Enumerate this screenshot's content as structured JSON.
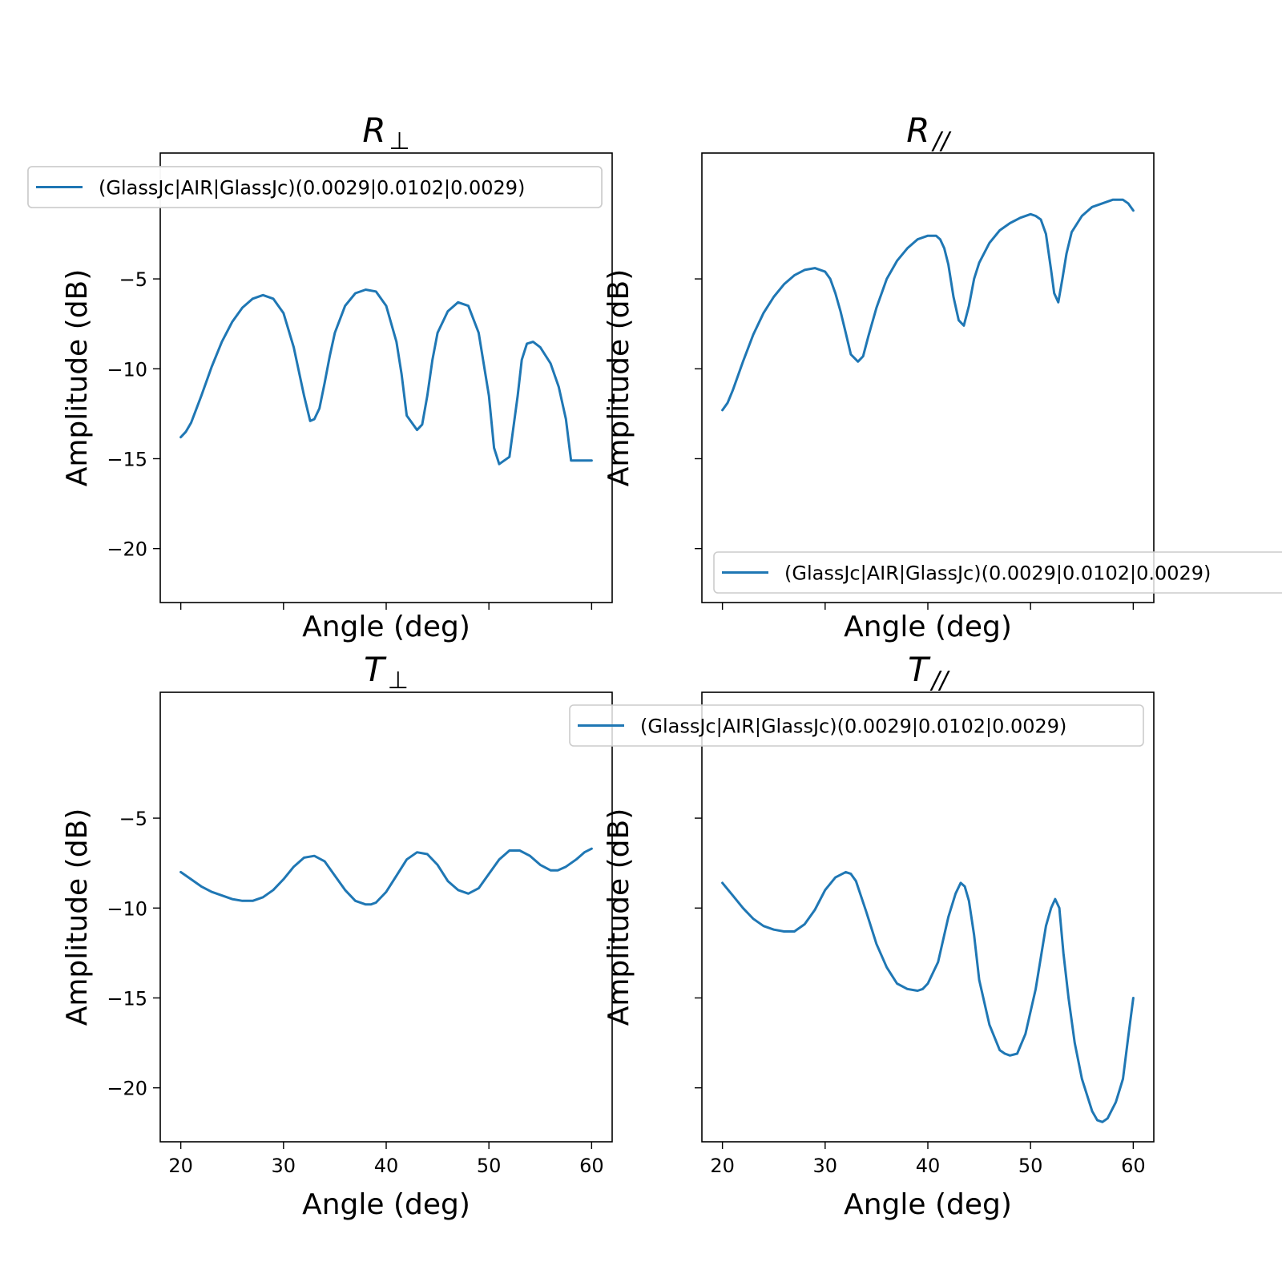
{
  "figure": {
    "background": "#ffffff",
    "line_color": "#1f77b4"
  },
  "chart_data": [
    {
      "type": "line",
      "title": "R",
      "title_subscript": "⊥",
      "xlabel": "Angle (deg)",
      "ylabel": "Amplitude (dB)",
      "xlim": [
        18,
        62
      ],
      "ylim": [
        -23,
        2
      ],
      "xticks": [
        20,
        30,
        40,
        50,
        60
      ],
      "yticks": [
        -20,
        -15,
        -10,
        -5
      ],
      "show_xtick_labels": false,
      "show_ytick_labels": true,
      "grid": false,
      "legend_position": "top-left",
      "series": [
        {
          "name": "(GlassJc|AIR|GlassJc)(0.0029|0.0102|0.0029)",
          "color": "#1f77b4",
          "x": [
            20,
            20.5,
            21,
            22,
            23,
            24,
            25,
            26,
            27,
            28,
            29,
            30,
            31,
            32,
            32.6,
            33,
            33.5,
            34,
            34.5,
            35,
            36,
            37,
            38,
            39,
            40,
            41,
            41.5,
            42,
            43,
            43.5,
            44,
            44.5,
            45,
            46,
            47,
            48,
            49,
            50,
            50.5,
            51,
            52,
            52.8,
            53.2,
            53.7,
            54.3,
            55,
            56,
            56.8,
            57.5,
            58,
            58.5,
            59,
            59.5,
            60
          ],
          "y": [
            -13.8,
            -13.5,
            -13.0,
            -11.5,
            -9.9,
            -8.5,
            -7.4,
            -6.6,
            -6.1,
            -5.9,
            -6.1,
            -6.9,
            -8.8,
            -11.5,
            -12.9,
            -12.8,
            -12.2,
            -10.8,
            -9.3,
            -8.0,
            -6.5,
            -5.8,
            -5.6,
            -5.7,
            -6.5,
            -8.5,
            -10.3,
            -12.6,
            -13.4,
            -13.1,
            -11.5,
            -9.5,
            -8.0,
            -6.8,
            -6.3,
            -6.5,
            -8.0,
            -11.5,
            -14.4,
            -15.3,
            -14.9,
            -11.5,
            -9.5,
            -8.6,
            -8.5,
            -8.8,
            -9.7,
            -11.0,
            -12.8,
            -15.1,
            -15.1,
            -15.1,
            -15.1,
            -15.1
          ]
        }
      ]
    },
    {
      "type": "line",
      "title": "R",
      "title_subscript": "//",
      "xlabel": "Angle (deg)",
      "ylabel": "Amplitude (dB)",
      "xlim": [
        18,
        62
      ],
      "ylim": [
        -23,
        2
      ],
      "xticks": [
        20,
        30,
        40,
        50,
        60
      ],
      "yticks": [
        -20,
        -15,
        -10,
        -5
      ],
      "show_xtick_labels": false,
      "show_ytick_labels": false,
      "grid": false,
      "legend_position": "bottom-right",
      "series": [
        {
          "name": "(GlassJc|AIR|GlassJc)(0.0029|0.0102|0.0029)",
          "color": "#1f77b4",
          "x": [
            20,
            20.5,
            21,
            22,
            23,
            24,
            25,
            26,
            27,
            28,
            29,
            30,
            30.5,
            31,
            31.5,
            32,
            32.5,
            33.2,
            33.7,
            34.2,
            35,
            36,
            37,
            38,
            39,
            40,
            40.8,
            41.2,
            41.6,
            42,
            42.5,
            43,
            43.5,
            44,
            44.5,
            45,
            46,
            47,
            48,
            49,
            50,
            50.5,
            51,
            51.5,
            52,
            52.3,
            52.7,
            53.1,
            53.5,
            54,
            55,
            56,
            57,
            58,
            59,
            59.5,
            60
          ],
          "y": [
            -12.3,
            -11.9,
            -11.2,
            -9.6,
            -8.1,
            -6.9,
            -6.0,
            -5.3,
            -4.8,
            -4.5,
            -4.4,
            -4.6,
            -5.0,
            -5.8,
            -6.8,
            -8.0,
            -9.2,
            -9.6,
            -9.3,
            -8.2,
            -6.6,
            -5.0,
            -4.0,
            -3.3,
            -2.8,
            -2.6,
            -2.6,
            -2.8,
            -3.3,
            -4.2,
            -6.0,
            -7.3,
            -7.6,
            -6.5,
            -5.0,
            -4.1,
            -3.0,
            -2.3,
            -1.9,
            -1.6,
            -1.4,
            -1.5,
            -1.7,
            -2.5,
            -4.5,
            -5.8,
            -6.3,
            -5.0,
            -3.6,
            -2.4,
            -1.5,
            -1.0,
            -0.8,
            -0.6,
            -0.6,
            -0.8,
            -1.2
          ]
        }
      ]
    },
    {
      "type": "line",
      "title": "T",
      "title_subscript": "⊥",
      "xlabel": "Angle (deg)",
      "ylabel": "Amplitude (dB)",
      "xlim": [
        18,
        62
      ],
      "ylim": [
        -23,
        2
      ],
      "xticks": [
        20,
        30,
        40,
        50,
        60
      ],
      "yticks": [
        -20,
        -15,
        -10,
        -5
      ],
      "show_xtick_labels": true,
      "show_ytick_labels": true,
      "grid": false,
      "legend_position": "top-left",
      "series": [
        {
          "name": "(GlassJc|AIR|GlassJc)(0.0029|0.0102|0.0029)",
          "color": "#1f77b4",
          "x": [
            20,
            21,
            22,
            23,
            24,
            25,
            26,
            27,
            28,
            29,
            30,
            31,
            32,
            33,
            34,
            35,
            36,
            37,
            38,
            38.5,
            39,
            40,
            41,
            42,
            43,
            44,
            45,
            46,
            47,
            48,
            49,
            50,
            51,
            52,
            53,
            54,
            55,
            56,
            56.7,
            57.5,
            58.5,
            59.3,
            60
          ],
          "y": [
            -8.0,
            -8.4,
            -8.8,
            -9.1,
            -9.3,
            -9.5,
            -9.6,
            -9.6,
            -9.4,
            -9.0,
            -8.4,
            -7.7,
            -7.2,
            -7.1,
            -7.4,
            -8.2,
            -9.0,
            -9.6,
            -9.8,
            -9.8,
            -9.7,
            -9.1,
            -8.2,
            -7.3,
            -6.9,
            -7.0,
            -7.6,
            -8.5,
            -9.0,
            -9.2,
            -8.9,
            -8.1,
            -7.3,
            -6.8,
            -6.8,
            -7.1,
            -7.6,
            -7.9,
            -7.9,
            -7.7,
            -7.3,
            -6.9,
            -6.7
          ]
        }
      ]
    },
    {
      "type": "line",
      "title": "T",
      "title_subscript": "//",
      "xlabel": "Angle (deg)",
      "ylabel": "Amplitude (dB)",
      "xlim": [
        18,
        62
      ],
      "ylim": [
        -23,
        2
      ],
      "xticks": [
        20,
        30,
        40,
        50,
        60
      ],
      "yticks": [
        -20,
        -15,
        -10,
        -5
      ],
      "show_xtick_labels": true,
      "show_ytick_labels": false,
      "grid": false,
      "legend_position": "top-right",
      "series": [
        {
          "name": "(GlassJc|AIR|GlassJc)(0.0029|0.0102|0.0029)",
          "color": "#1f77b4",
          "x": [
            20,
            21,
            22,
            23,
            24,
            25,
            26,
            26.5,
            27,
            28,
            29,
            30,
            31,
            32,
            32.5,
            33,
            34,
            35,
            36,
            37,
            38,
            39,
            39.5,
            40,
            41,
            42,
            42.7,
            43.2,
            43.6,
            44,
            44.5,
            45,
            46,
            47,
            47.5,
            48,
            48.7,
            49.5,
            50.5,
            51.5,
            52,
            52.4,
            52.8,
            53.2,
            53.7,
            54.3,
            55,
            56,
            56.5,
            57,
            57.5,
            58.3,
            59,
            59.5,
            60
          ],
          "y": [
            -8.6,
            -9.3,
            -10.0,
            -10.6,
            -11.0,
            -11.2,
            -11.3,
            -11.3,
            -11.3,
            -10.9,
            -10.1,
            -9.0,
            -8.3,
            -8.0,
            -8.1,
            -8.5,
            -10.2,
            -12.0,
            -13.3,
            -14.2,
            -14.5,
            -14.6,
            -14.5,
            -14.2,
            -13.0,
            -10.5,
            -9.2,
            -8.6,
            -8.8,
            -9.6,
            -11.5,
            -14.0,
            -16.5,
            -17.9,
            -18.1,
            -18.2,
            -18.1,
            -17.0,
            -14.5,
            -11.0,
            -10.0,
            -9.5,
            -10.0,
            -12.5,
            -15.0,
            -17.5,
            -19.5,
            -21.3,
            -21.8,
            -21.9,
            -21.7,
            -20.8,
            -19.5,
            -17.2,
            -15.0
          ]
        }
      ]
    }
  ]
}
